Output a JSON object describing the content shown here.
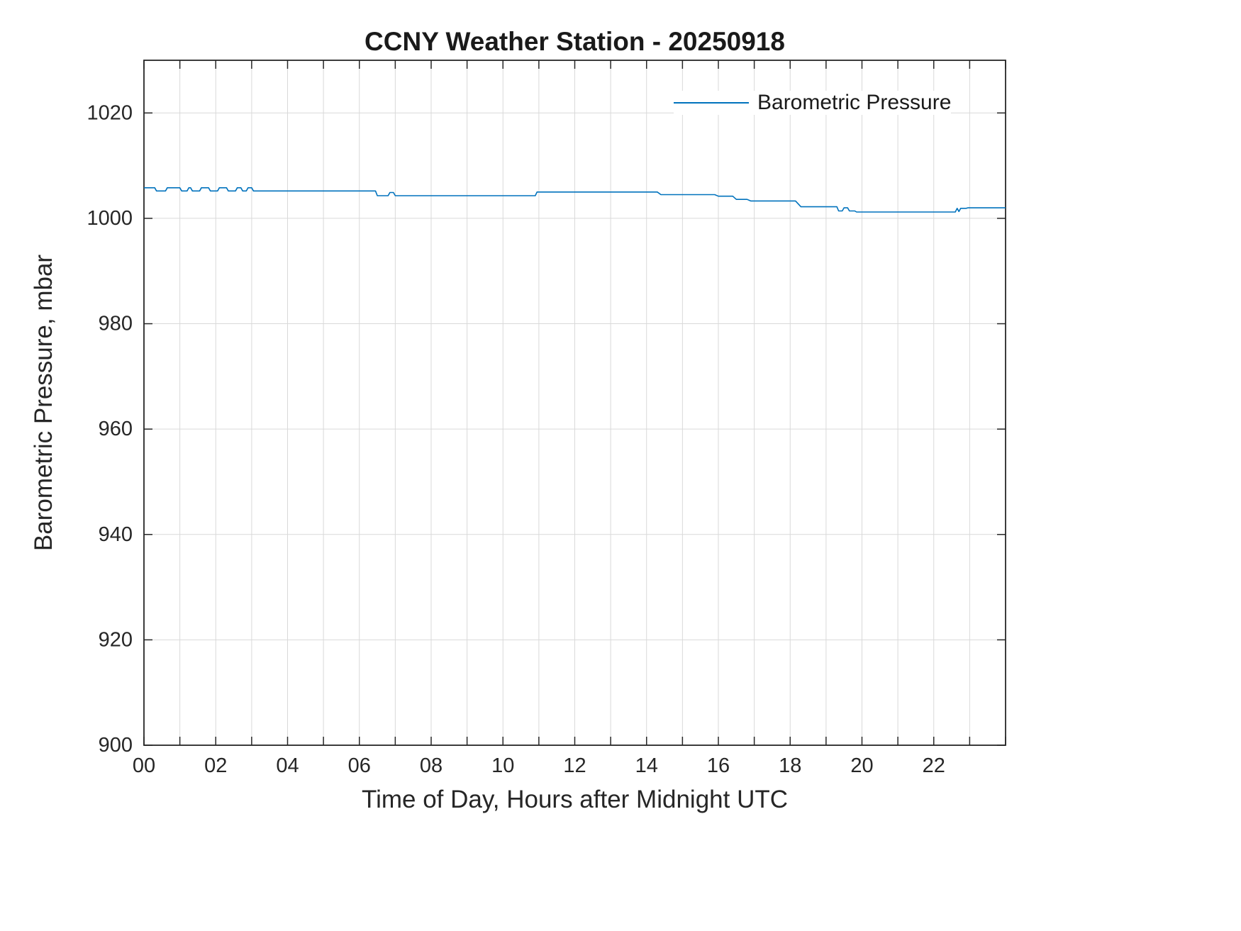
{
  "page": {
    "background": "#ffffff"
  },
  "colors": {
    "line": "#0072BD",
    "grid": "#d9d9d9",
    "axis": "#262626",
    "tick_label": "#262626"
  },
  "chart_data": {
    "type": "line",
    "title": "CCNY Weather Station - 20250918",
    "xlabel": "Time of Day, Hours after Midnight UTC",
    "ylabel": "Barometric Pressure, mbar",
    "xlim": [
      0,
      24
    ],
    "ylim": [
      900,
      1030
    ],
    "x_major_ticks": [
      0,
      2,
      4,
      6,
      8,
      10,
      12,
      14,
      16,
      18,
      20,
      22
    ],
    "x_major_labels": [
      "00",
      "02",
      "04",
      "06",
      "08",
      "10",
      "12",
      "14",
      "16",
      "18",
      "20",
      "22"
    ],
    "x_minor_step": 1,
    "y_ticks": [
      900,
      920,
      940,
      960,
      980,
      1000,
      1020
    ],
    "y_tick_labels": [
      "900",
      "920",
      "940",
      "960",
      "980",
      "1000",
      "1020"
    ],
    "grid": true,
    "legend": {
      "position": "top-right",
      "entries": [
        {
          "label": "Barometric Pressure",
          "color": "#0072BD"
        }
      ]
    },
    "series": [
      {
        "name": "Barometric Pressure",
        "color": "#0072BD",
        "x": [
          0,
          0.3,
          0.35,
          0.6,
          0.65,
          1.0,
          1.05,
          1.2,
          1.25,
          1.3,
          1.35,
          1.55,
          1.6,
          1.8,
          1.85,
          2.05,
          2.1,
          2.3,
          2.35,
          2.55,
          2.6,
          2.7,
          2.75,
          2.85,
          2.9,
          3.0,
          3.05,
          6.45,
          6.5,
          6.8,
          6.85,
          6.95,
          7.0,
          10.9,
          10.95,
          14.3,
          14.4,
          15.9,
          16.0,
          16.4,
          16.5,
          16.8,
          16.9,
          18.15,
          18.3,
          19.3,
          19.35,
          19.45,
          19.5,
          19.6,
          19.65,
          19.8,
          19.85,
          22.6,
          22.65,
          22.7,
          22.75,
          22.9,
          22.95,
          24.0
        ],
        "y": [
          1005.8,
          1005.8,
          1005.2,
          1005.2,
          1005.8,
          1005.8,
          1005.2,
          1005.2,
          1005.8,
          1005.8,
          1005.2,
          1005.2,
          1005.8,
          1005.8,
          1005.2,
          1005.2,
          1005.8,
          1005.8,
          1005.2,
          1005.2,
          1005.8,
          1005.8,
          1005.2,
          1005.2,
          1005.8,
          1005.8,
          1005.2,
          1005.2,
          1004.3,
          1004.3,
          1004.9,
          1004.9,
          1004.3,
          1004.3,
          1005.0,
          1005.0,
          1004.5,
          1004.5,
          1004.2,
          1004.2,
          1003.6,
          1003.6,
          1003.3,
          1003.3,
          1002.2,
          1002.2,
          1001.4,
          1001.4,
          1002.0,
          1002.0,
          1001.4,
          1001.4,
          1001.2,
          1001.2,
          1001.9,
          1001.3,
          1001.9,
          1001.9,
          1002.0,
          1002.0
        ]
      }
    ]
  }
}
